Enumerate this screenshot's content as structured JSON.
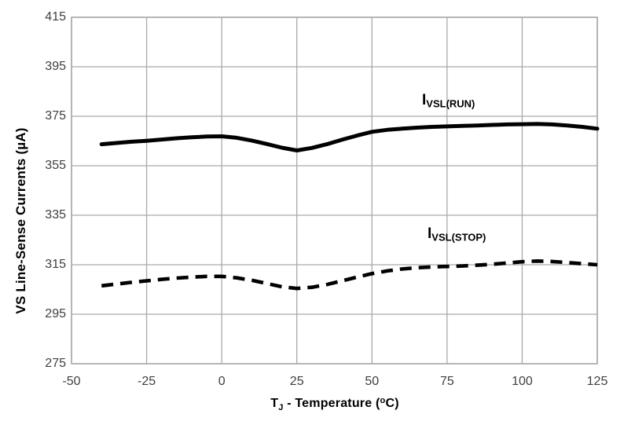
{
  "colors": {
    "background": "#ffffff",
    "grid": "#a9a9a9",
    "frame": "#a9a9a9",
    "tick_label": "#404040",
    "title_text": "#000000",
    "series_line": "#000000"
  },
  "labels": {
    "x_axis_title_parts": {
      "prefix": "T",
      "subscript": "J",
      "mid": " - Temperature (",
      "superscript": "o",
      "suffix": "C)"
    }
  },
  "chart_data": {
    "type": "line",
    "title": "",
    "xlabel": "TJ - Temperature (°C)",
    "ylabel": "VS Line-Sense Currents (µA)",
    "xlim": [
      -50,
      125
    ],
    "ylim": [
      275,
      415
    ],
    "x_ticks": [
      -50,
      -25,
      0,
      25,
      50,
      75,
      100,
      125
    ],
    "y_ticks": [
      275,
      295,
      315,
      335,
      355,
      375,
      395,
      415
    ],
    "grid": true,
    "legend_position": "inline-labels-above-curves",
    "x": [
      -40,
      -35,
      -30,
      -25,
      -20,
      -15,
      -10,
      -5,
      0,
      5,
      10,
      15,
      20,
      25,
      30,
      35,
      40,
      45,
      50,
      55,
      60,
      65,
      70,
      75,
      80,
      85,
      90,
      95,
      100,
      105,
      110,
      115,
      120,
      125
    ],
    "series": [
      {
        "name": "IVSL(RUN)",
        "label_symbol": "I",
        "label_subscript": "VSL(RUN)",
        "style": "solid",
        "color": "#000000",
        "values": [
          363.7,
          364.2,
          364.7,
          365.1,
          365.6,
          366.1,
          366.5,
          366.8,
          366.9,
          366.3,
          365.2,
          363.8,
          362.3,
          361.2,
          362.2,
          363.7,
          365.5,
          367.2,
          368.7,
          369.5,
          370.0,
          370.4,
          370.7,
          370.9,
          371.1,
          371.3,
          371.5,
          371.7,
          371.8,
          371.9,
          371.7,
          371.3,
          370.7,
          370.0
        ]
      },
      {
        "name": "IVSL(STOP)",
        "label_symbol": "I",
        "label_subscript": "VSL(STOP)",
        "style": "dashed",
        "color": "#000000",
        "values": [
          306.5,
          307.2,
          307.9,
          308.5,
          309.1,
          309.6,
          310.0,
          310.3,
          310.3,
          309.7,
          308.7,
          307.4,
          306.1,
          305.4,
          305.9,
          307.0,
          308.5,
          310.0,
          311.4,
          312.5,
          313.3,
          313.8,
          314.1,
          314.3,
          314.5,
          314.8,
          315.2,
          315.7,
          316.2,
          316.5,
          316.3,
          315.9,
          315.4,
          315.0
        ]
      }
    ]
  }
}
